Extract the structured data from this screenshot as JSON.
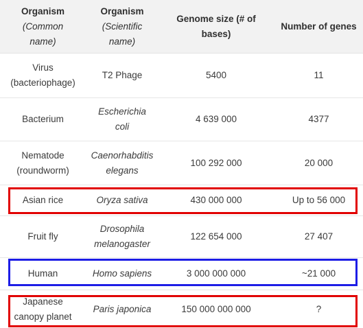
{
  "table": {
    "header": {
      "col1": {
        "line1": "Organism",
        "line2_prefix": "(",
        "line2_italic": "Common",
        "line3_italic": "name",
        "line3_suffix": ")"
      },
      "col2": {
        "line1": "Organism",
        "line2_prefix": "(",
        "line2_italic": "Scientific",
        "line3_italic": "name",
        "line3_suffix": ")"
      },
      "col3": {
        "line1": "Genome size (# of",
        "line2": "bases)"
      },
      "col4": {
        "line1": "Number of genes"
      }
    },
    "rows": [
      {
        "common": [
          "Virus",
          "(bacteriophage)"
        ],
        "scientific": [
          "T2 Phage"
        ],
        "genome_size": "5400",
        "genes": "11"
      },
      {
        "common": [
          "Bacterium"
        ],
        "scientific": [
          "Escherichia",
          "coli"
        ],
        "genome_size": "4 639 000",
        "genes": "4377"
      },
      {
        "common": [
          "Nematode",
          "(roundworm)"
        ],
        "scientific": [
          "Caenorhabditis",
          "elegans"
        ],
        "genome_size": "100 292 000",
        "genes": "20 000"
      },
      {
        "common": [
          "Asian rice"
        ],
        "scientific": [
          "Oryza sativa"
        ],
        "genome_size": "430 000 000",
        "genes": "Up to 56 000"
      },
      {
        "common": [
          "Fruit fly"
        ],
        "scientific": [
          "Drosophila",
          "melanogaster"
        ],
        "genome_size": "122 654 000",
        "genes": "27 407"
      },
      {
        "common": [
          "Human"
        ],
        "scientific": [
          "Homo sapiens"
        ],
        "genome_size": "3 000 000 000",
        "genes": "~21 000"
      },
      {
        "common": [
          "Japanese",
          "canopy planet"
        ],
        "scientific": [
          "Paris japonica"
        ],
        "genome_size": "150 000 000 000",
        "genes": "?"
      }
    ],
    "highlight_colors": {
      "red": "#e10000",
      "blue": "#1d1de6"
    }
  }
}
